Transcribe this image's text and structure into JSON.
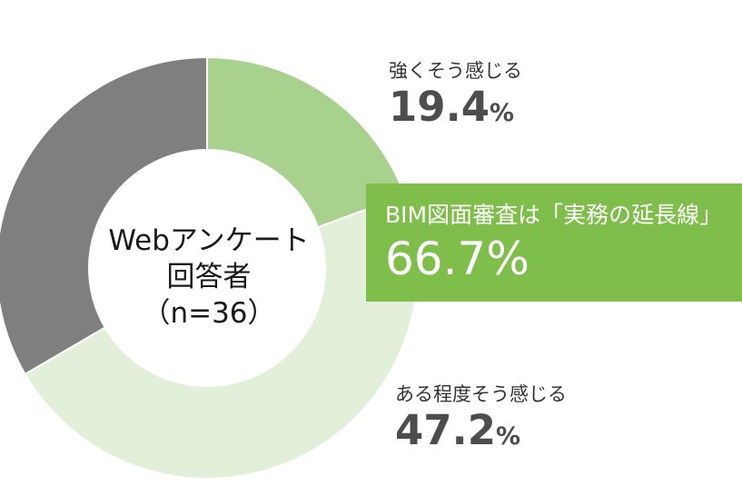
{
  "chart_data": {
    "type": "pie",
    "categories": [
      "強くそう感じる",
      "ある程度そう感じる",
      ""
    ],
    "values": [
      19.4,
      47.2,
      33.4
    ],
    "colors": [
      "#a9d18e",
      "#e2efd9",
      "#7f7f7f"
    ],
    "center_label": [
      "Webアンケート",
      "回答者",
      "（n=36）"
    ],
    "slice_labels": [
      {
        "category": "強くそう感じる",
        "value": "19.4",
        "unit": "%"
      },
      {
        "category": "ある程度そう感じる",
        "value": "47.2",
        "unit": "%"
      }
    ],
    "callout": {
      "title": "BIM図面審査は「実務の延長線」",
      "value": "66.7%",
      "color": "#7fbe4a"
    }
  }
}
